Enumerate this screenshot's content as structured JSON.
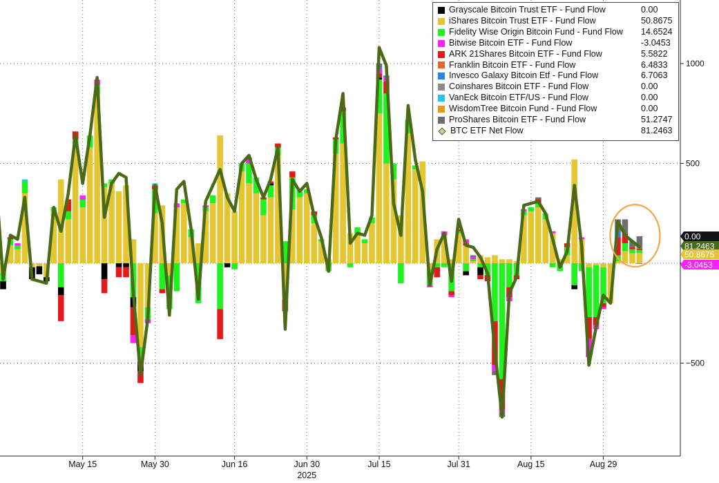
{
  "chart_data": {
    "type": "bar",
    "stacked": true,
    "overlay_line_series": "BTC ETF Net Flow",
    "y_axis": {
      "side": "right",
      "ticks": [
        -500,
        0,
        500,
        1000
      ],
      "ylim": [
        -950,
        1300
      ]
    },
    "x_axis": {
      "tick_labels": [
        "May 15",
        "May 30",
        "Jun 16",
        "Jun 30",
        "Jul 15",
        "Jul 31",
        "Aug 15",
        "Aug 29"
      ],
      "tick_positions": [
        10,
        20,
        31,
        41,
        51,
        62,
        72,
        82
      ],
      "year_label": "2025",
      "range": [
        -6,
        84
      ]
    },
    "grid": true,
    "legend_placement": "top-right",
    "legend": [
      {
        "name": "Grayscale Bitcoin Trust ETF - Fund Flow",
        "value": "0.00",
        "color": "#000000"
      },
      {
        "name": "iShares Bitcoin Trust ETF - Fund Flow",
        "value": "50.8675",
        "color": "#e3c632"
      },
      {
        "name": "Fidelity Wise Origin Bitcoin Fund - Fund Flow",
        "value": "14.6524",
        "color": "#1ff21f"
      },
      {
        "name": "Bitwise Bitcoin ETF - Fund Flow",
        "value": "-3.0453",
        "color": "#ff1fff"
      },
      {
        "name": "ARK 21Shares Bitcoin ETF - Fund Flow",
        "value": "5.5822",
        "color": "#e41a1a"
      },
      {
        "name": "Franklin Bitcoin ETF - Fund Flow",
        "value": "6.4833",
        "color": "#e8642a"
      },
      {
        "name": "Invesco Galaxy Bitcoin Etf - Fund Flow",
        "value": "6.7063",
        "color": "#2a82e8"
      },
      {
        "name": "Coinshares Bitcoin ETF - Fund Flow",
        "value": "0.00",
        "color": "#8c8c8c"
      },
      {
        "name": "VanEck Bitcoin ETF/US - Fund Flow",
        "value": "0.00",
        "color": "#2ac4f0"
      },
      {
        "name": "WisdomTree Bitcoin Fund - Fund Flow",
        "value": "0.00",
        "color": "#e89a1a"
      },
      {
        "name": "ProShares Bitcoin ETF - Fund Flow",
        "value": "51.2747",
        "color": "#6e6e6e"
      },
      {
        "name": "BTC ETF Net Flow",
        "value": "81.2463",
        "color": "#4a6a18",
        "marker": "diamond"
      }
    ],
    "series_colors": {
      "ibit": "#e3c632",
      "fbtc": "#1ff21f",
      "gbtc": "#000000",
      "arkb": "#e41a1a",
      "bitb": "#ff1fff",
      "ezbc": "#e8642a",
      "btco": "#2a82e8",
      "brrr": "#8c8c8c",
      "hodl": "#2ac4f0",
      "btcw": "#e89a1a",
      "btc": "#6e6e6e",
      "net": "#4a6a18"
    },
    "axis_value_labels": [
      {
        "text": "0.00",
        "value": 0,
        "bg": "#111111",
        "fg": "#ffffff"
      },
      {
        "text": "81.2463",
        "value": 81.2463,
        "bg": "#4a6a18",
        "fg": "#ffffff"
      },
      {
        "text": "50.8675",
        "value": 50.8675,
        "bg": "#e3c632",
        "fg": "#ffffff"
      },
      {
        "text": "-3.0453",
        "value": -3.0453,
        "bg": "#ff1fff",
        "fg": "#ffffff"
      }
    ],
    "days": [
      {
        "x": -6,
        "ibit": -30,
        "gbtc": -60,
        "arkb": -130
      },
      {
        "x": -5,
        "ibit": 290,
        "fbtc": -120
      },
      {
        "x": -4,
        "ibit": 460,
        "fbtc": 120,
        "arkb": 20,
        "gbtc": 10
      },
      {
        "x": -3,
        "ibit": 640,
        "fbtc": 30
      },
      {
        "x": -2,
        "ibit": 530,
        "fbtc": -60,
        "gbtc": -10
      },
      {
        "x": -1,
        "ibit": -50,
        "fbtc": -40,
        "gbtc": -40
      },
      {
        "x": 0,
        "ibit": 90,
        "fbtc": 30,
        "arkb": 10
      },
      {
        "x": 1,
        "ibit": 70,
        "fbtc": 20,
        "bitb": 10
      },
      {
        "x": 2,
        "ibit": 350,
        "fbtc": 60,
        "hodl": 10
      },
      {
        "x": 3,
        "ibit": -20,
        "gbtc": -60
      },
      {
        "x": 4,
        "ibit": -15,
        "gbtc": -40
      },
      {
        "x": 5,
        "ibit": -70,
        "gbtc": -20
      },
      {
        "x": 6,
        "ibit": 260,
        "fbtc": 20
      },
      {
        "x": 7,
        "ibit": 420,
        "fbtc": -120,
        "arkb": -130,
        "gbtc": -40
      },
      {
        "x": 8,
        "ibit": 220,
        "fbtc": 40,
        "arkb": 60
      },
      {
        "x": 9,
        "ibit": 580,
        "fbtc": 40,
        "arkb": 40
      },
      {
        "x": 10,
        "ibit": 280,
        "fbtc": 40,
        "bitb": 20
      },
      {
        "x": 11,
        "ibit": 580,
        "fbtc": 60
      },
      {
        "x": 12,
        "ibit": 850,
        "fbtc": 40,
        "bitb": 30
      },
      {
        "x": 13,
        "ibit": 380,
        "fbtc": 20,
        "arkb": -70,
        "gbtc": -80
      },
      {
        "x": 14,
        "ibit": 400,
        "fbtc": 20
      },
      {
        "x": 15,
        "ibit": 360,
        "arkb": -50,
        "gbtc": -20
      },
      {
        "x": 16,
        "ibit": 390,
        "arkb": -50,
        "gbtc": -20
      },
      {
        "x": 17,
        "ibit": 120,
        "fbtc": -170,
        "arkb": -140,
        "bitb": -40,
        "gbtc": -50
      },
      {
        "x": 18,
        "ibit": -420,
        "fbtc": -70,
        "arkb": -60,
        "gbtc": -50
      },
      {
        "x": 19,
        "ibit": -220,
        "fbtc": -60,
        "bitb": -20
      },
      {
        "x": 20,
        "ibit": 250,
        "fbtc": 120,
        "arkb": 20,
        "hodl": 10
      },
      {
        "x": 21,
        "ibit": 290,
        "fbtc": -130,
        "arkb": -20
      },
      {
        "x": 22,
        "ibit": -60,
        "fbtc": -170
      },
      {
        "x": 23,
        "ibit": 280,
        "fbtc": -140,
        "bitb": 20
      },
      {
        "x": 24,
        "ibit": 300,
        "fbtc": 20
      },
      {
        "x": 25,
        "ibit": 130,
        "fbtc": 40
      },
      {
        "x": 26,
        "ibit": 100,
        "fbtc": -200
      },
      {
        "x": 27,
        "ibit": 260,
        "fbtc": 20,
        "bitb": 10
      },
      {
        "x": 28,
        "ibit": 300,
        "fbtc": 40
      },
      {
        "x": 29,
        "ibit": 640,
        "fbtc": -230,
        "arkb": -150
      },
      {
        "x": 30,
        "ibit": 350,
        "gbtc": -20
      },
      {
        "x": 31,
        "ibit": 260,
        "fbtc": -30
      },
      {
        "x": 32,
        "ibit": 460,
        "fbtc": 40
      },
      {
        "x": 33,
        "ibit": 400,
        "fbtc": 100,
        "bitb": 30
      },
      {
        "x": 34,
        "ibit": 350,
        "fbtc": 80
      },
      {
        "x": 35,
        "ibit": 240,
        "fbtc": 80,
        "arkb": 10
      },
      {
        "x": 36,
        "ibit": 330,
        "fbtc": 60,
        "arkb": 10,
        "gbtc": 10
      },
      {
        "x": 37,
        "ibit": 540,
        "fbtc": 40,
        "arkb": 20
      },
      {
        "x": 38,
        "ibit": -180,
        "fbtc": 110,
        "arkb": -60
      },
      {
        "x": 39,
        "ibit": 270,
        "fbtc": 160,
        "arkb": 30
      },
      {
        "x": 40,
        "ibit": 330,
        "fbtc": 40
      },
      {
        "x": 41,
        "ibit": 350,
        "fbtc": 20
      },
      {
        "x": 42,
        "ibit": 200,
        "fbtc": 40,
        "arkb": 20
      },
      {
        "x": 43,
        "ibit": 110,
        "fbtc": 10
      },
      {
        "x": 44,
        "ibit": 20,
        "fbtc": -40
      },
      {
        "x": 45,
        "ibit": 550,
        "fbtc": 70,
        "arkb": 10
      },
      {
        "x": 46,
        "ibit": 600,
        "fbtc": 160,
        "arkb": 20
      },
      {
        "x": 47,
        "ibit": 150,
        "fbtc": -20
      },
      {
        "x": 48,
        "ibit": 140,
        "fbtc": 40
      },
      {
        "x": 49,
        "ibit": 100,
        "fbtc": 20
      },
      {
        "x": 50,
        "ibit": 200,
        "fbtc": 30
      },
      {
        "x": 51,
        "ibit": 750,
        "fbtc": 170,
        "bitb": 20,
        "arkb": 20,
        "btco": 10,
        "gbtc": 10,
        "btc": 20
      },
      {
        "x": 52,
        "ibit": 500,
        "fbtc": 350,
        "arkb": 60,
        "bitb": 20,
        "btco": 10
      },
      {
        "x": 53,
        "ibit": 420,
        "fbtc": 80
      },
      {
        "x": 54,
        "ibit": 240,
        "fbtc": -100
      },
      {
        "x": 55,
        "ibit": 650,
        "fbtc": 70
      },
      {
        "x": 56,
        "ibit": 470,
        "fbtc": 20
      },
      {
        "x": 57,
        "ibit": 510
      },
      {
        "x": 58,
        "ibit": -30,
        "fbtc": -80,
        "bitb": -10
      },
      {
        "x": 59,
        "ibit": 120,
        "fbtc": -20,
        "arkb": -50
      },
      {
        "x": 60,
        "ibit": 140,
        "fbtc": -20,
        "bitb": 20
      },
      {
        "x": 61,
        "ibit": 20,
        "fbtc": -140,
        "arkb": -20,
        "bitb": -10
      },
      {
        "x": 62,
        "ibit": 150,
        "fbtc": 10,
        "arkb": 10
      },
      {
        "x": 63,
        "ibit": 90,
        "fbtc": -40,
        "bitb": 20,
        "arkb": 10,
        "gbtc": -20
      },
      {
        "x": 64,
        "ibit": 10,
        "fbtc": 10,
        "bitb": 10,
        "btc": 10
      },
      {
        "x": 65,
        "ibit": 40,
        "fbtc": -20,
        "arkb": -20,
        "gbtc": -40
      },
      {
        "x": 66,
        "ibit": 30,
        "fbtc": -60,
        "arkb": -30
      },
      {
        "x": 67,
        "ibit": 40,
        "fbtc": -290,
        "arkb": -220,
        "bitb": -30,
        "btc": -20
      },
      {
        "x": 68,
        "ibit": 20,
        "fbtc": -580,
        "arkb": -150,
        "bitb": -20,
        "btc": -20
      },
      {
        "x": 69,
        "ibit": 20,
        "fbtc": -120,
        "arkb": -50,
        "bitb": -20
      },
      {
        "x": 70,
        "ibit": 10,
        "fbtc": -60,
        "arkb": -20
      },
      {
        "x": 71,
        "ibit": 240,
        "fbtc": 20,
        "bitb": 10
      },
      {
        "x": 72,
        "ibit": 260,
        "fbtc": 20
      },
      {
        "x": 73,
        "ibit": 280,
        "fbtc": 20,
        "arkb": 20,
        "btc": 10
      },
      {
        "x": 74,
        "ibit": 220,
        "fbtc": 30
      },
      {
        "x": 75,
        "ibit": 150,
        "fbtc": -20,
        "bitb": 10
      },
      {
        "x": 76,
        "ibit": 20,
        "fbtc": -40
      },
      {
        "x": 77,
        "ibit": 40,
        "fbtc": 40,
        "arkb": 20
      },
      {
        "x": 78,
        "ibit": 520,
        "fbtc": -110,
        "gbtc": -20
      },
      {
        "x": 79,
        "ibit": 120,
        "fbtc": -40,
        "bitb": 10
      },
      {
        "x": 80,
        "ibit": -20,
        "fbtc": -250,
        "bitb": -90,
        "arkb": -110
      },
      {
        "x": 81,
        "ibit": -10,
        "fbtc": -260,
        "arkb": -40,
        "bitb": -20
      },
      {
        "x": 82,
        "ibit": -20,
        "fbtc": -180,
        "arkb": -20,
        "bitb": -10
      },
      {
        "x": 83,
        "ibit": -200
      },
      {
        "x": 84,
        "ibit": 10,
        "fbtc": 30,
        "arkb": 90,
        "btco": 30,
        "btc": 60
      },
      {
        "x": 85,
        "ibit": 60,
        "fbtc": 40,
        "arkb": 50,
        "btc": 70
      },
      {
        "x": 86,
        "ibit": 50,
        "fbtc": 20,
        "arkb": 10,
        "btc": 30
      },
      {
        "x": 87,
        "ibit": 50.8675,
        "fbtc": 14.6524,
        "bitb": -3.0453,
        "arkb": 5.5822,
        "ezbc": 6.4833,
        "btco": 6.7063,
        "btc": 51.2747
      }
    ],
    "net_flow": [
      [
        -6,
        -30
      ],
      [
        -5,
        170
      ],
      [
        -4,
        560
      ],
      [
        -3,
        670
      ],
      [
        -2,
        420
      ],
      [
        -1,
        -80
      ],
      [
        0,
        140
      ],
      [
        1,
        120
      ],
      [
        2,
        330
      ],
      [
        3,
        -80
      ],
      [
        4,
        -90
      ],
      [
        5,
        -100
      ],
      [
        6,
        280
      ],
      [
        7,
        160
      ],
      [
        8,
        350
      ],
      [
        9,
        640
      ],
      [
        10,
        400
      ],
      [
        11,
        640
      ],
      [
        12,
        930
      ],
      [
        13,
        230
      ],
      [
        14,
        400
      ],
      [
        15,
        450
      ],
      [
        16,
        430
      ],
      [
        17,
        -150
      ],
      [
        18,
        -560
      ],
      [
        19,
        -280
      ],
      [
        20,
        390
      ],
      [
        21,
        200
      ],
      [
        22,
        -260
      ],
      [
        23,
        370
      ],
      [
        24,
        410
      ],
      [
        25,
        170
      ],
      [
        26,
        -180
      ],
      [
        27,
        310
      ],
      [
        28,
        390
      ],
      [
        29,
        470
      ],
      [
        30,
        330
      ],
      [
        31,
        260
      ],
      [
        32,
        500
      ],
      [
        33,
        540
      ],
      [
        34,
        420
      ],
      [
        35,
        330
      ],
      [
        36,
        420
      ],
      [
        37,
        580
      ],
      [
        38,
        -330
      ],
      [
        39,
        420
      ],
      [
        40,
        360
      ],
      [
        41,
        400
      ],
      [
        42,
        240
      ],
      [
        43,
        130
      ],
      [
        44,
        -40
      ],
      [
        45,
        620
      ],
      [
        46,
        850
      ],
      [
        47,
        100
      ],
      [
        48,
        150
      ],
      [
        49,
        140
      ],
      [
        50,
        240
      ],
      [
        51,
        1080
      ],
      [
        52,
        990
      ],
      [
        53,
        300
      ],
      [
        54,
        140
      ],
      [
        55,
        790
      ],
      [
        56,
        520
      ],
      [
        57,
        360
      ],
      [
        58,
        -110
      ],
      [
        59,
        70
      ],
      [
        60,
        150
      ],
      [
        61,
        -90
      ],
      [
        62,
        220
      ],
      [
        63,
        90
      ],
      [
        64,
        80
      ],
      [
        65,
        30
      ],
      [
        66,
        -50
      ],
      [
        67,
        -440
      ],
      [
        68,
        -770
      ],
      [
        69,
        -150
      ],
      [
        70,
        -70
      ],
      [
        71,
        290
      ],
      [
        72,
        300
      ],
      [
        73,
        310
      ],
      [
        74,
        250
      ],
      [
        75,
        120
      ],
      [
        76,
        -20
      ],
      [
        77,
        60
      ],
      [
        78,
        390
      ],
      [
        79,
        90
      ],
      [
        80,
        -510
      ],
      [
        81,
        -320
      ],
      [
        82,
        -160
      ],
      [
        83,
        -200
      ],
      [
        84,
        210
      ],
      [
        85,
        140
      ],
      [
        86,
        110
      ],
      [
        87,
        81.2463
      ]
    ],
    "annotation": {
      "type": "circle",
      "center_x": 86,
      "center_y": 100,
      "color": "#f0a64a"
    }
  }
}
